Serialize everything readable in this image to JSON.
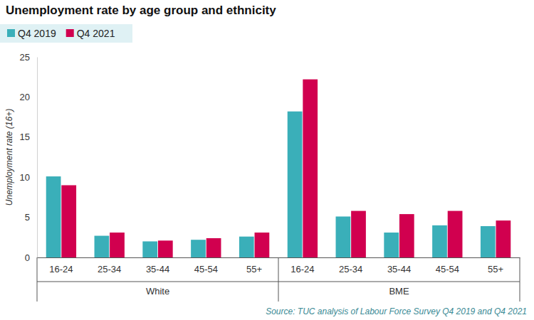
{
  "chart_data": {
    "type": "bar",
    "title": "Unemployment rate by age group and ethnicity",
    "y_label": "Unemployment rate (16+)",
    "source": "Source: TUC analysis of Labour Force Survey Q4 2019 and Q4 2021",
    "categories": [
      "16-24",
      "25-34",
      "35-44",
      "45-54",
      "55+",
      "16-24",
      "25-34",
      "35-44",
      "45-54",
      "55+"
    ],
    "groups": [
      "White",
      "White",
      "White",
      "White",
      "White",
      "BME",
      "BME",
      "BME",
      "BME",
      "BME"
    ],
    "series": [
      {
        "name": "Q4 2019",
        "color": "#3aafb9",
        "values": [
          10.1,
          2.7,
          2.0,
          2.2,
          2.6,
          18.2,
          5.1,
          3.1,
          4.0,
          3.9
        ]
      },
      {
        "name": "Q4 2021",
        "color": "#d1004f",
        "values": [
          9.0,
          3.1,
          2.1,
          2.4,
          3.1,
          22.2,
          5.8,
          5.4,
          5.8,
          4.6
        ]
      }
    ],
    "ylim": [
      0,
      25
    ],
    "yticks": [
      0,
      5,
      10,
      15,
      20,
      25
    ],
    "grid": false,
    "legend": "top-left"
  }
}
